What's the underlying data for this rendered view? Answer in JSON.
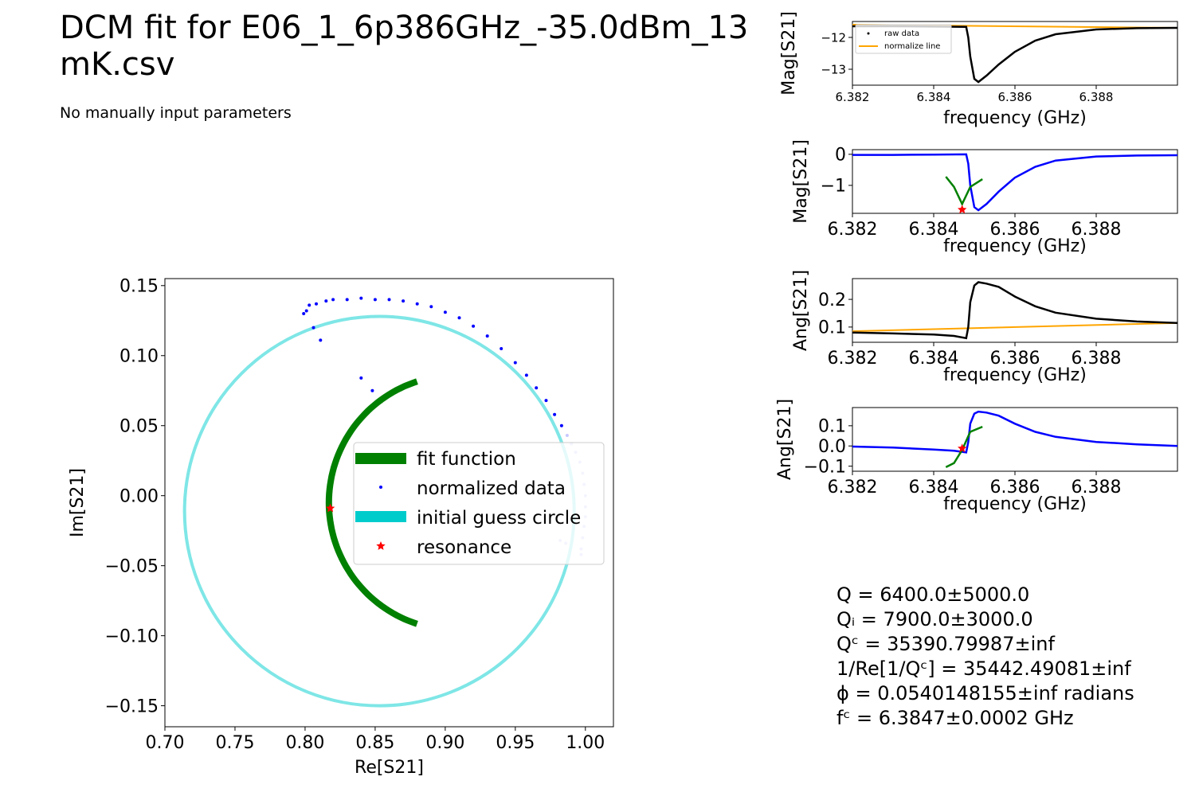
{
  "title_line1": "DCM fit for E06_1_6p386GHz_-35.0dBm_13",
  "title_line2": "mK.csv",
  "subtitle": "No manually input parameters",
  "params": [
    "Q = 6400.0±5000.0",
    "Qᵢ = 7900.0±3000.0",
    "Qᶜ = 35390.79987±inf",
    "1/Re[1/Qᶜ] = 35442.49081±inf",
    "ϕ = 0.0540148155±inf radians",
    "fᶜ = 6.3847±0.0002 GHz"
  ],
  "colors": {
    "fit": "#008000",
    "normalized": "#0000ff",
    "normalized_light": "#c8c8ff",
    "guess_circle": "#7fe6e6",
    "guess_legend": "#00cccc",
    "raw": "#000000",
    "normalize_line": "#ffa500",
    "resonance": "#ff0000"
  },
  "chart_data": [
    {
      "type": "scatter",
      "id": "main",
      "xlabel": "Re[S21]",
      "ylabel": "Im[S21]",
      "xlim": [
        0.7,
        1.02
      ],
      "ylim": [
        -0.165,
        0.155
      ],
      "xticks": [
        0.7,
        0.75,
        0.8,
        0.85,
        0.9,
        0.95,
        1.0
      ],
      "xtick_labels": [
        "0.70",
        "0.75",
        "0.80",
        "0.85",
        "0.90",
        "0.95",
        "1.00"
      ],
      "yticks": [
        0.15,
        0.1,
        0.05,
        0.0,
        -0.05,
        -0.1,
        -0.15
      ],
      "ytick_labels": [
        "0.15",
        "0.10",
        "0.05",
        "0.00",
        "−0.05",
        "−0.10",
        "−0.15"
      ],
      "legend": [
        "fit function",
        "normalized data",
        "initial guess circle",
        "resonance"
      ],
      "legend_position": "center-right",
      "initial_guess_circle": {
        "center": [
          0.853,
          -0.011
        ],
        "radius": 0.139
      },
      "fit_function": {
        "center": [
          0.908,
          -0.005
        ],
        "radius": 0.091,
        "start_deg": 108,
        "end_deg": 252
      },
      "resonance": [
        0.818,
        -0.009
      ],
      "normalized_data": [
        [
          0.799,
          0.13
        ],
        [
          0.801,
          0.132
        ],
        [
          0.803,
          0.136
        ],
        [
          0.806,
          0.12
        ],
        [
          0.808,
          0.137
        ],
        [
          0.811,
          0.111
        ],
        [
          0.815,
          0.139
        ],
        [
          0.82,
          0.14
        ],
        [
          0.83,
          0.14
        ],
        [
          0.84,
          0.141
        ],
        [
          0.84,
          0.084
        ],
        [
          0.848,
          0.075
        ],
        [
          0.85,
          0.14
        ],
        [
          0.86,
          0.14
        ],
        [
          0.87,
          0.139
        ],
        [
          0.88,
          0.137
        ],
        [
          0.89,
          0.135
        ],
        [
          0.9,
          0.131
        ],
        [
          0.91,
          0.127
        ],
        [
          0.92,
          0.121
        ],
        [
          0.93,
          0.114
        ],
        [
          0.94,
          0.105
        ],
        [
          0.95,
          0.095
        ],
        [
          0.958,
          0.086
        ],
        [
          0.965,
          0.077
        ],
        [
          0.972,
          0.068
        ],
        [
          0.978,
          0.058
        ],
        [
          0.983,
          0.05
        ],
        [
          0.987,
          0.043
        ],
        [
          0.99,
          0.037
        ],
        [
          0.993,
          0.031
        ],
        [
          0.996,
          0.024
        ],
        [
          0.998,
          0.016
        ],
        [
          0.999,
          0.008
        ],
        [
          1.0,
          0.0
        ],
        [
          1.0,
          -0.008
        ],
        [
          1.0,
          -0.015
        ],
        [
          0.999,
          -0.022
        ],
        [
          0.998,
          -0.03
        ],
        [
          0.997,
          -0.038
        ],
        [
          0.997,
          -0.042
        ],
        [
          0.982,
          -0.032
        ],
        [
          0.986,
          -0.034
        ]
      ]
    },
    {
      "type": "line",
      "id": "raw_mag",
      "xlabel": "frequency (GHz)",
      "ylabel": "Mag[S21]",
      "xlim": [
        6.382,
        6.39
      ],
      "ylim": [
        -13.5,
        -11.5
      ],
      "xticks": [
        6.382,
        6.384,
        6.386,
        6.388
      ],
      "xtick_labels": [
        "6.382",
        "6.384",
        "6.386",
        "6.388"
      ],
      "yticks": [
        -12,
        -13
      ],
      "ytick_labels": [
        "−12",
        "−13"
      ],
      "legend": [
        "raw data",
        "normalize line"
      ],
      "legend_position": "upper-left",
      "normalize_line": [
        [
          6.382,
          -11.6
        ],
        [
          6.39,
          -11.7
        ]
      ],
      "raw_data": [
        [
          6.382,
          -11.65
        ],
        [
          6.383,
          -11.65
        ],
        [
          6.384,
          -11.66
        ],
        [
          6.3848,
          -11.67
        ],
        [
          6.38485,
          -12.0
        ],
        [
          6.3849,
          -12.6
        ],
        [
          6.385,
          -13.3
        ],
        [
          6.3851,
          -13.4
        ],
        [
          6.3853,
          -13.2
        ],
        [
          6.3856,
          -12.85
        ],
        [
          6.386,
          -12.45
        ],
        [
          6.3865,
          -12.1
        ],
        [
          6.387,
          -11.9
        ],
        [
          6.388,
          -11.75
        ],
        [
          6.389,
          -11.71
        ],
        [
          6.39,
          -11.7
        ]
      ]
    },
    {
      "type": "line",
      "id": "norm_mag",
      "xlabel": "frequency (GHz)",
      "ylabel": "Mag[S21]",
      "xlim": [
        6.382,
        6.39
      ],
      "ylim": [
        -1.9,
        0.15
      ],
      "xticks": [
        6.382,
        6.384,
        6.386,
        6.388
      ],
      "xtick_labels": [
        "6.382",
        "6.384",
        "6.386",
        "6.388"
      ],
      "yticks": [
        0,
        -1
      ],
      "ytick_labels": [
        "0",
        "−1"
      ],
      "normalized_data": [
        [
          6.382,
          -0.02
        ],
        [
          6.383,
          -0.02
        ],
        [
          6.384,
          -0.01
        ],
        [
          6.3848,
          0.0
        ],
        [
          6.38485,
          -0.3
        ],
        [
          6.3849,
          -1.0
        ],
        [
          6.385,
          -1.7
        ],
        [
          6.3851,
          -1.8
        ],
        [
          6.3853,
          -1.6
        ],
        [
          6.3856,
          -1.2
        ],
        [
          6.386,
          -0.75
        ],
        [
          6.3865,
          -0.4
        ],
        [
          6.387,
          -0.2
        ],
        [
          6.388,
          -0.07
        ],
        [
          6.389,
          -0.04
        ],
        [
          6.39,
          -0.03
        ]
      ],
      "fit_function": [
        [
          6.3843,
          -0.72
        ],
        [
          6.3845,
          -1.05
        ],
        [
          6.3847,
          -1.6
        ],
        [
          6.3849,
          -1.05
        ],
        [
          6.3852,
          -0.8
        ]
      ],
      "resonance": [
        6.3847,
        -1.78
      ]
    },
    {
      "type": "line",
      "id": "raw_ang",
      "xlabel": "frequency (GHz)",
      "ylabel": "Ang[S21]",
      "xlim": [
        6.382,
        6.39
      ],
      "ylim": [
        0.045,
        0.275
      ],
      "xticks": [
        6.382,
        6.384,
        6.386,
        6.388
      ],
      "xtick_labels": [
        "6.382",
        "6.384",
        "6.386",
        "6.388"
      ],
      "yticks": [
        0.2,
        0.1
      ],
      "ytick_labels": [
        "0.2",
        "0.1"
      ],
      "normalize_line": [
        [
          6.382,
          0.085
        ],
        [
          6.39,
          0.115
        ]
      ],
      "raw_data": [
        [
          6.382,
          0.08
        ],
        [
          6.383,
          0.077
        ],
        [
          6.384,
          0.073
        ],
        [
          6.3845,
          0.068
        ],
        [
          6.3848,
          0.06
        ],
        [
          6.38485,
          0.1
        ],
        [
          6.3849,
          0.19
        ],
        [
          6.385,
          0.25
        ],
        [
          6.3851,
          0.262
        ],
        [
          6.3853,
          0.257
        ],
        [
          6.3856,
          0.245
        ],
        [
          6.386,
          0.21
        ],
        [
          6.3865,
          0.175
        ],
        [
          6.387,
          0.152
        ],
        [
          6.388,
          0.13
        ],
        [
          6.389,
          0.12
        ],
        [
          6.39,
          0.115
        ]
      ]
    },
    {
      "type": "line",
      "id": "norm_ang",
      "xlabel": "frequency (GHz)",
      "ylabel": "Ang[S21]",
      "xlim": [
        6.382,
        6.39
      ],
      "ylim": [
        -0.125,
        0.19
      ],
      "xticks": [
        6.382,
        6.384,
        6.386,
        6.388
      ],
      "xtick_labels": [
        "6.382",
        "6.384",
        "6.386",
        "6.388"
      ],
      "yticks": [
        0.1,
        0.0,
        -0.1
      ],
      "ytick_labels": [
        "0.1",
        "0.0",
        "−0.1"
      ],
      "normalized_data": [
        [
          6.382,
          -0.003
        ],
        [
          6.383,
          -0.008
        ],
        [
          6.384,
          -0.018
        ],
        [
          6.3845,
          -0.024
        ],
        [
          6.3848,
          -0.032
        ],
        [
          6.38485,
          0.02
        ],
        [
          6.3849,
          0.11
        ],
        [
          6.385,
          0.16
        ],
        [
          6.3851,
          0.17
        ],
        [
          6.3853,
          0.165
        ],
        [
          6.3856,
          0.15
        ],
        [
          6.386,
          0.11
        ],
        [
          6.3865,
          0.07
        ],
        [
          6.387,
          0.045
        ],
        [
          6.388,
          0.02
        ],
        [
          6.389,
          0.008
        ],
        [
          6.39,
          0.0
        ]
      ],
      "fit_function": [
        [
          6.3843,
          -0.105
        ],
        [
          6.3845,
          -0.085
        ],
        [
          6.3847,
          -0.02
        ],
        [
          6.3849,
          0.07
        ],
        [
          6.3852,
          0.095
        ]
      ],
      "resonance": [
        6.3847,
        -0.012
      ]
    }
  ]
}
